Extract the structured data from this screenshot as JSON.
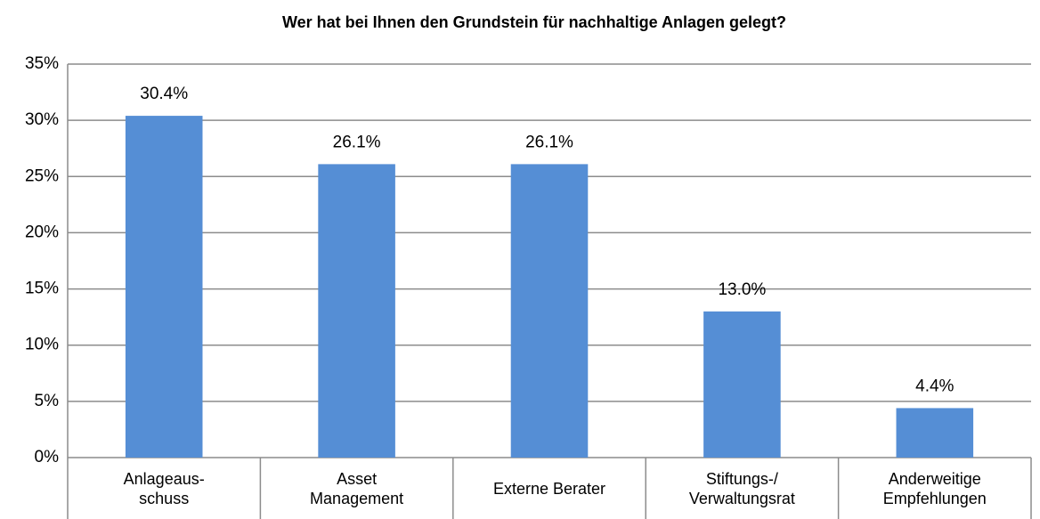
{
  "chart_data": {
    "type": "bar",
    "title": "Wer hat bei Ihnen den Grundstein für nachhaltige Anlagen gelegt?",
    "categories": [
      "Anlageaus-\nschuss",
      "Asset\nManagement",
      "Externe Berater",
      "Stiftungs-/\nVerwaltungsrat",
      "Anderweitige\nEmpfehlungen"
    ],
    "values": [
      30.4,
      26.1,
      26.1,
      13.0,
      4.4
    ],
    "value_labels": [
      "30.4%",
      "26.1%",
      "26.1%",
      "13.0%",
      "4.4%"
    ],
    "color": "#558ed5",
    "ylim": [
      0,
      35
    ],
    "yticks": [
      {
        "value": 0,
        "label": "0%"
      },
      {
        "value": 5,
        "label": "5%"
      },
      {
        "value": 10,
        "label": "10%"
      },
      {
        "value": 15,
        "label": "15%"
      },
      {
        "value": 20,
        "label": "20%"
      },
      {
        "value": 25,
        "label": "25%"
      },
      {
        "value": 30,
        "label": "30%"
      },
      {
        "value": 35,
        "label": "35%"
      }
    ],
    "grid": true
  }
}
